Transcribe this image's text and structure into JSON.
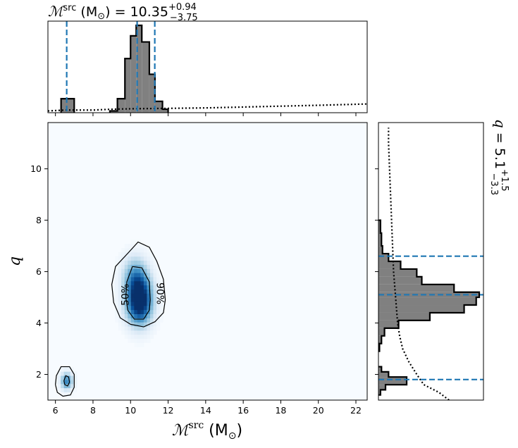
{
  "chart_data": {
    "type": "corner_plot",
    "x_param": {
      "symbol": "ℳ",
      "sup": "src",
      "unit": "(M",
      "unit_sub": "⊙",
      "unit_close": ")",
      "median": "10.35",
      "plus": "+0.94",
      "minus": "−3.75",
      "lim": [
        5.6,
        22.6
      ],
      "ticks": [
        6,
        8,
        10,
        12,
        14,
        16,
        18,
        20,
        22
      ],
      "quantiles": [
        6.6,
        10.35,
        11.29
      ]
    },
    "y_param": {
      "symbol": "q",
      "median": "5.1",
      "plus": "+1.5",
      "minus": "−3.3",
      "lim": [
        1.0,
        11.8
      ],
      "ticks": [
        2,
        4,
        6,
        8,
        10
      ],
      "quantiles": [
        1.8,
        5.1,
        6.6
      ]
    },
    "x_hist": {
      "bins": [
        {
          "x0": 6.3,
          "x1": 7.0,
          "h": 0.16
        },
        {
          "x0": 8.9,
          "x1": 9.3,
          "h": 0.02
        },
        {
          "x0": 9.3,
          "x1": 9.7,
          "h": 0.16
        },
        {
          "x0": 9.7,
          "x1": 10.0,
          "h": 0.62
        },
        {
          "x0": 10.0,
          "x1": 10.3,
          "h": 0.88
        },
        {
          "x0": 10.3,
          "x1": 10.6,
          "h": 1.0
        },
        {
          "x0": 10.6,
          "x1": 11.0,
          "h": 0.81
        },
        {
          "x0": 11.0,
          "x1": 11.3,
          "h": 0.44
        },
        {
          "x0": 11.3,
          "x1": 11.7,
          "h": 0.13
        },
        {
          "x0": 11.7,
          "x1": 12.0,
          "h": 0.04
        }
      ],
      "prior": [
        [
          5.6,
          0.02
        ],
        [
          6.5,
          0.03
        ],
        [
          8.0,
          0.03
        ],
        [
          9.0,
          0.04
        ],
        [
          10.0,
          0.045
        ],
        [
          12.0,
          0.05
        ],
        [
          14.0,
          0.055
        ],
        [
          16.0,
          0.065
        ],
        [
          18.0,
          0.075
        ],
        [
          20.0,
          0.085
        ],
        [
          22.6,
          0.1
        ]
      ]
    },
    "y_hist": {
      "bins": [
        {
          "y0": 1.2,
          "y1": 1.4,
          "w": 0.02
        },
        {
          "y0": 1.4,
          "y1": 1.6,
          "w": 0.07
        },
        {
          "y0": 1.6,
          "y1": 1.9,
          "w": 0.28
        },
        {
          "y0": 1.9,
          "y1": 2.1,
          "w": 0.1
        },
        {
          "y0": 2.1,
          "y1": 2.3,
          "w": 0.03
        },
        {
          "y0": 2.9,
          "y1": 3.2,
          "w": 0.01
        },
        {
          "y0": 3.2,
          "y1": 3.5,
          "w": 0.03
        },
        {
          "y0": 3.5,
          "y1": 3.8,
          "w": 0.06
        },
        {
          "y0": 3.8,
          "y1": 4.1,
          "w": 0.2
        },
        {
          "y0": 4.1,
          "y1": 4.4,
          "w": 0.51
        },
        {
          "y0": 4.4,
          "y1": 4.7,
          "w": 0.85
        },
        {
          "y0": 4.7,
          "y1": 5.0,
          "w": 0.97
        },
        {
          "y0": 5.0,
          "y1": 5.2,
          "w": 1.0
        },
        {
          "y0": 5.2,
          "y1": 5.5,
          "w": 0.75
        },
        {
          "y0": 5.5,
          "y1": 5.8,
          "w": 0.43
        },
        {
          "y0": 5.8,
          "y1": 6.1,
          "w": 0.38
        },
        {
          "y0": 6.1,
          "y1": 6.4,
          "w": 0.22
        },
        {
          "y0": 6.4,
          "y1": 6.7,
          "w": 0.1
        },
        {
          "y0": 6.7,
          "y1": 7.0,
          "w": 0.04
        },
        {
          "y0": 7.0,
          "y1": 7.5,
          "w": 0.03
        },
        {
          "y0": 7.5,
          "y1": 8.0,
          "w": 0.02
        }
      ],
      "prior": [
        [
          1.0,
          0.7
        ],
        [
          1.3,
          0.6
        ],
        [
          1.6,
          0.45
        ],
        [
          2.0,
          0.38
        ],
        [
          2.5,
          0.3
        ],
        [
          3.0,
          0.24
        ],
        [
          3.5,
          0.21
        ],
        [
          4.0,
          0.19
        ],
        [
          5.0,
          0.17
        ],
        [
          6.0,
          0.15
        ],
        [
          7.0,
          0.14
        ],
        [
          8.0,
          0.13
        ],
        [
          9.0,
          0.12
        ],
        [
          10.0,
          0.11
        ],
        [
          11.0,
          0.1
        ],
        [
          11.6,
          0.1
        ]
      ]
    },
    "density": [
      {
        "x": 10.5,
        "y": 5.0,
        "sx": 0.45,
        "sy": 0.65,
        "w": 1.0
      },
      {
        "x": 10.2,
        "y": 5.8,
        "sx": 0.45,
        "sy": 0.55,
        "w": 0.45
      },
      {
        "x": 10.4,
        "y": 4.6,
        "sx": 0.5,
        "sy": 0.5,
        "w": 0.35
      },
      {
        "x": 6.6,
        "y": 1.75,
        "sx": 0.22,
        "sy": 0.22,
        "w": 0.7
      }
    ],
    "contours": [
      {
        "label": "50%",
        "label_at": [
          9.75,
          5.1
        ],
        "label_rot": -90,
        "paths": [
          [
            [
              10.1,
              6.2
            ],
            [
              10.6,
              6.15
            ],
            [
              11.0,
              5.6
            ],
            [
              11.05,
              4.9
            ],
            [
              11.0,
              4.5
            ],
            [
              10.7,
              4.15
            ],
            [
              10.2,
              4.15
            ],
            [
              9.85,
              4.5
            ],
            [
              9.75,
              5.0
            ],
            [
              9.8,
              5.6
            ],
            [
              10.1,
              6.2
            ]
          ],
          [
            [
              6.45,
              1.75
            ],
            [
              6.55,
              1.95
            ],
            [
              6.7,
              1.9
            ],
            [
              6.75,
              1.7
            ],
            [
              6.65,
              1.55
            ],
            [
              6.5,
              1.6
            ],
            [
              6.45,
              1.75
            ]
          ]
        ]
      },
      {
        "label": "90%",
        "label_at": [
          11.55,
          5.15
        ],
        "label_rot": 90,
        "paths": [
          [
            [
              9.9,
              6.75
            ],
            [
              10.4,
              7.15
            ],
            [
              11.0,
              6.95
            ],
            [
              11.4,
              6.4
            ],
            [
              11.75,
              5.7
            ],
            [
              11.85,
              4.9
            ],
            [
              11.75,
              4.4
            ],
            [
              11.3,
              4.05
            ],
            [
              10.7,
              3.85
            ],
            [
              10.0,
              3.95
            ],
            [
              9.45,
              4.2
            ],
            [
              9.1,
              4.8
            ],
            [
              9.0,
              5.5
            ],
            [
              9.2,
              6.2
            ],
            [
              9.9,
              6.75
            ]
          ],
          [
            [
              6.0,
              1.6
            ],
            [
              6.05,
              1.95
            ],
            [
              6.3,
              2.3
            ],
            [
              6.75,
              2.3
            ],
            [
              7.0,
              2.0
            ],
            [
              7.0,
              1.5
            ],
            [
              6.8,
              1.2
            ],
            [
              6.4,
              1.15
            ],
            [
              6.1,
              1.3
            ],
            [
              6.0,
              1.6
            ]
          ]
        ]
      }
    ],
    "colors": {
      "hist_fill": "#808080",
      "quantile_line": "#1f77b4",
      "density_max": "#08306b",
      "density_min": "#f7fbff"
    }
  }
}
